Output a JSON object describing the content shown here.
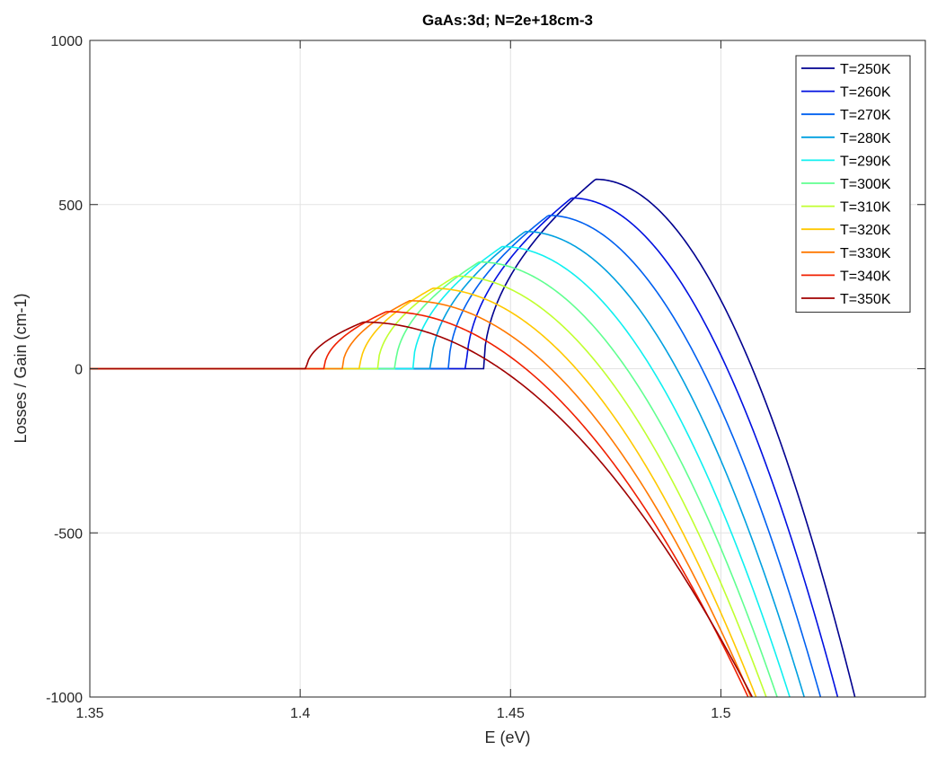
{
  "chart_data": {
    "type": "line",
    "title": "GaAs:3d; N=2e+18cm-3",
    "xlabel": "E (eV)",
    "ylabel": "Losses / Gain (cm-1)",
    "xlim": [
      1.35,
      1.5486
    ],
    "ylim": [
      -1000,
      1000
    ],
    "x_ticks": [
      1.35,
      1.4,
      1.45,
      1.5
    ],
    "x_tick_labels": [
      "1.35",
      "1.4",
      "1.45",
      "1.5"
    ],
    "y_ticks": [
      -1000,
      -500,
      0,
      500,
      1000
    ],
    "y_tick_labels": [
      "-1000",
      "-500",
      "0",
      "500",
      "1000"
    ],
    "grid": true,
    "legend_position": "top-right",
    "series": [
      {
        "name": "T=250K",
        "color": "#00008f",
        "onset": 1.4436,
        "peak_x": 1.4702,
        "peak_y": 577,
        "zero_x": 1.5075
      },
      {
        "name": "T=260K",
        "color": "#0010e0",
        "onset": 1.4395,
        "peak_x": 1.4645,
        "peak_y": 520,
        "zero_x": 1.5015
      },
      {
        "name": "T=270K",
        "color": "#0060f0",
        "onset": 1.4353,
        "peak_x": 1.459,
        "peak_y": 467,
        "zero_x": 1.4955
      },
      {
        "name": "T=280K",
        "color": "#00a0e0",
        "onset": 1.4311,
        "peak_x": 1.4535,
        "peak_y": 418,
        "zero_x": 1.4895
      },
      {
        "name": "T=290K",
        "color": "#10f0f0",
        "onset": 1.4268,
        "peak_x": 1.448,
        "peak_y": 372,
        "zero_x": 1.4836
      },
      {
        "name": "T=300K",
        "color": "#60ff90",
        "onset": 1.4226,
        "peak_x": 1.4425,
        "peak_y": 325,
        "zero_x": 1.4776
      },
      {
        "name": "T=310K",
        "color": "#c0ff30",
        "onset": 1.4184,
        "peak_x": 1.437,
        "peak_y": 282,
        "zero_x": 1.4716
      },
      {
        "name": "T=320K",
        "color": "#ffc800",
        "onset": 1.4142,
        "peak_x": 1.4315,
        "peak_y": 245,
        "zero_x": 1.4656
      },
      {
        "name": "T=330K",
        "color": "#ff7800",
        "onset": 1.41,
        "peak_x": 1.426,
        "peak_y": 207,
        "zero_x": 1.4596
      },
      {
        "name": "T=340K",
        "color": "#f02000",
        "onset": 1.4057,
        "peak_x": 1.4205,
        "peak_y": 174,
        "zero_x": 1.4536
      },
      {
        "name": "T=350K",
        "color": "#a00000",
        "onset": 1.4015,
        "peak_x": 1.415,
        "peak_y": 142,
        "zero_x": 1.4476
      }
    ]
  }
}
